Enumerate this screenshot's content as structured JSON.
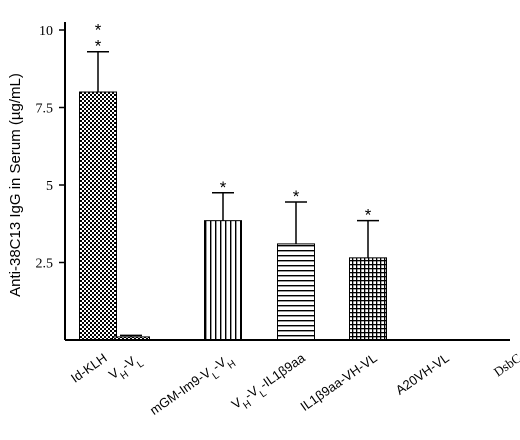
{
  "chart_data": {
    "type": "bar",
    "ylabel": "Anti-38C13 IgG in Serum (µg/mL)",
    "ylim": [
      0,
      10
    ],
    "yticks": [
      {
        "value": 2.5,
        "label": "2.5"
      },
      {
        "value": 5,
        "label": "5"
      },
      {
        "value": 7.5,
        "label": "7.5"
      },
      {
        "value": 10,
        "label": "10"
      }
    ],
    "categories": [
      {
        "label": "Id-KLH",
        "parts": [
          {
            "t": "Id-KLH"
          }
        ],
        "value": 8.0,
        "error": 1.3,
        "pattern": "checker",
        "significance": "**"
      },
      {
        "label": "VH-VL",
        "parts": [
          {
            "t": "V"
          },
          {
            "t": "H",
            "sub": true
          },
          {
            "t": "-V"
          },
          {
            "t": "L",
            "sub": true
          }
        ],
        "value": 0.1,
        "error": 0.05,
        "pattern": "checker",
        "significance": ""
      },
      {
        "label": "mGM-Im9-VL-VH",
        "parts": [
          {
            "t": "mGM-Im9-V"
          },
          {
            "t": "L",
            "sub": true
          },
          {
            "t": "-V"
          },
          {
            "t": "H",
            "sub": true
          }
        ],
        "value": 3.85,
        "error": 0.9,
        "pattern": "vertical",
        "significance": "*"
      },
      {
        "label": "VH-VL-IL1β9aa",
        "parts": [
          {
            "t": "V"
          },
          {
            "t": "H",
            "sub": true
          },
          {
            "t": "-V"
          },
          {
            "t": "L",
            "sub": true
          },
          {
            "t": "-IL1β9aa"
          }
        ],
        "value": 3.1,
        "error": 1.35,
        "pattern": "horizontal",
        "significance": "*"
      },
      {
        "label": "IL1β9aa-VH-VL",
        "parts": [
          {
            "t": "IL1β9aa-VH-VL"
          }
        ],
        "value": 2.65,
        "error": 1.2,
        "pattern": "grid",
        "significance": "*"
      },
      {
        "label": "A20VH-VL",
        "parts": [
          {
            "t": "A20VH-VL"
          }
        ],
        "value": 0,
        "error": 0,
        "pattern": "none",
        "significance": ""
      },
      {
        "label": "DsbC",
        "parts": [
          {
            "t": "DsbC"
          }
        ],
        "value": 0,
        "error": 0,
        "pattern": "none",
        "significance": "",
        "serif": true
      }
    ],
    "colors": {
      "bar_stroke": "#000000",
      "axis": "#000000",
      "background": "#ffffff"
    }
  }
}
